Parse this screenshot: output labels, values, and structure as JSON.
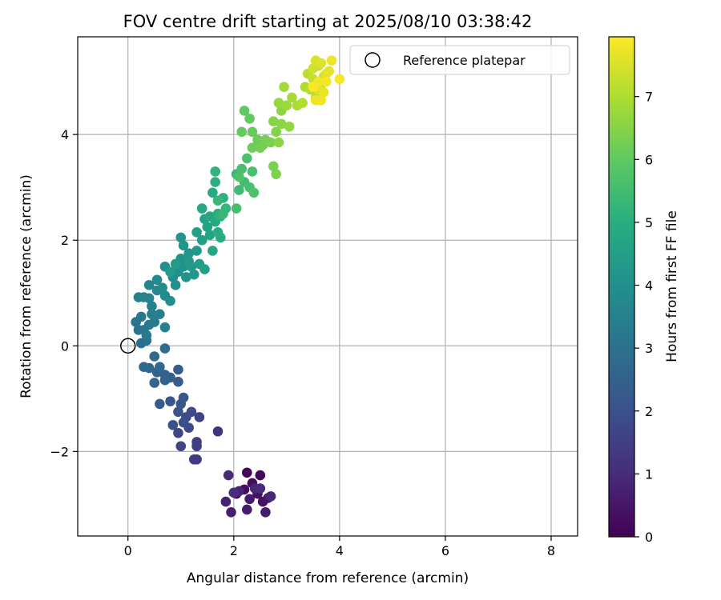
{
  "chart_data": {
    "type": "scatter",
    "title": "FOV centre drift starting at 2025/08/10 03:38:42",
    "xlabel": "Angular distance from reference (arcmin)",
    "ylabel": "Rotation from reference (arcmin)",
    "xlim": [
      -0.95,
      8.5
    ],
    "ylim": [
      -3.6,
      5.85
    ],
    "xticks": [
      {
        "value": 0,
        "label": "0"
      },
      {
        "value": 2,
        "label": "2"
      },
      {
        "value": 4,
        "label": "4"
      },
      {
        "value": 6,
        "label": "6"
      },
      {
        "value": 8,
        "label": "8"
      }
    ],
    "yticks": [
      {
        "value": -2,
        "label": "−2"
      },
      {
        "value": 0,
        "label": "0"
      },
      {
        "value": 2,
        "label": "2"
      },
      {
        "value": 4,
        "label": "4"
      }
    ],
    "grid": true,
    "colorbar": {
      "label": "Hours from first FF file",
      "range": [
        0,
        7.95
      ],
      "ticks": [
        "0",
        "1",
        "2",
        "3",
        "4",
        "5",
        "6",
        "7"
      ],
      "colormap": "viridis"
    },
    "legend": {
      "position": "top-right",
      "entries": [
        {
          "label": "Reference platepar",
          "marker": "open-circle"
        }
      ]
    },
    "reference_point": {
      "x": 0,
      "y": 0
    },
    "points": [
      {
        "x": 2.05,
        "y": -2.8,
        "c": 0.05
      },
      {
        "x": 2.25,
        "y": -2.4,
        "c": 0.12
      },
      {
        "x": 2.5,
        "y": -2.45,
        "c": 0.18
      },
      {
        "x": 2.2,
        "y": -2.72,
        "c": 0.25
      },
      {
        "x": 2.35,
        "y": -2.6,
        "c": 0.3
      },
      {
        "x": 2.45,
        "y": -2.8,
        "c": 0.38
      },
      {
        "x": 2.55,
        "y": -2.95,
        "c": 0.42
      },
      {
        "x": 2.65,
        "y": -2.88,
        "c": 0.5
      },
      {
        "x": 2.3,
        "y": -2.9,
        "c": 0.55
      },
      {
        "x": 2.6,
        "y": -3.15,
        "c": 0.6
      },
      {
        "x": 2.25,
        "y": -3.1,
        "c": 0.65
      },
      {
        "x": 1.95,
        "y": -3.15,
        "c": 0.7
      },
      {
        "x": 1.85,
        "y": -2.95,
        "c": 0.75
      },
      {
        "x": 2.1,
        "y": -2.75,
        "c": 0.8
      },
      {
        "x": 2.4,
        "y": -2.7,
        "c": 0.85
      },
      {
        "x": 2.7,
        "y": -2.85,
        "c": 0.9
      },
      {
        "x": 1.9,
        "y": -2.45,
        "c": 0.95
      },
      {
        "x": 2.5,
        "y": -2.7,
        "c": 1.0
      },
      {
        "x": 2.0,
        "y": -2.78,
        "c": 1.05
      },
      {
        "x": 1.7,
        "y": -1.62,
        "c": 1.15
      },
      {
        "x": 1.3,
        "y": -2.15,
        "c": 1.3
      },
      {
        "x": 1.25,
        "y": -2.15,
        "c": 1.4
      },
      {
        "x": 1.3,
        "y": -1.9,
        "c": 1.45
      },
      {
        "x": 1.3,
        "y": -1.82,
        "c": 1.5
      },
      {
        "x": 1.35,
        "y": -1.35,
        "c": 1.6
      },
      {
        "x": 1.0,
        "y": -1.9,
        "c": 1.65
      },
      {
        "x": 0.95,
        "y": -1.65,
        "c": 1.72
      },
      {
        "x": 1.15,
        "y": -1.55,
        "c": 1.78
      },
      {
        "x": 1.1,
        "y": -1.35,
        "c": 1.85
      },
      {
        "x": 1.2,
        "y": -1.25,
        "c": 1.9
      },
      {
        "x": 1.05,
        "y": -1.45,
        "c": 1.95
      },
      {
        "x": 0.85,
        "y": -1.5,
        "c": 2.0
      },
      {
        "x": 0.95,
        "y": -1.25,
        "c": 2.05
      },
      {
        "x": 1.0,
        "y": -1.1,
        "c": 2.1
      },
      {
        "x": 0.8,
        "y": -1.05,
        "c": 2.15
      },
      {
        "x": 1.05,
        "y": -0.98,
        "c": 2.2
      },
      {
        "x": 0.6,
        "y": -1.1,
        "c": 2.25
      },
      {
        "x": 0.95,
        "y": -0.68,
        "c": 2.3
      },
      {
        "x": 0.95,
        "y": -0.45,
        "c": 2.35
      },
      {
        "x": 0.8,
        "y": -0.6,
        "c": 2.4
      },
      {
        "x": 0.7,
        "y": -0.65,
        "c": 2.45
      },
      {
        "x": 0.7,
        "y": -0.55,
        "c": 2.5
      },
      {
        "x": 0.55,
        "y": -0.5,
        "c": 2.55
      },
      {
        "x": 0.5,
        "y": -0.7,
        "c": 2.6
      },
      {
        "x": 0.6,
        "y": -0.4,
        "c": 2.65
      },
      {
        "x": 0.4,
        "y": -0.42,
        "c": 2.7
      },
      {
        "x": 0.3,
        "y": -0.4,
        "c": 2.75
      },
      {
        "x": 0.5,
        "y": -0.2,
        "c": 2.8
      },
      {
        "x": 0.7,
        "y": -0.05,
        "c": 2.85
      },
      {
        "x": 0.25,
        "y": 0.05,
        "c": 2.9
      },
      {
        "x": 0.35,
        "y": 0.1,
        "c": 2.95
      },
      {
        "x": 0.2,
        "y": 0.3,
        "c": 3.0
      },
      {
        "x": 0.15,
        "y": 0.45,
        "c": 3.05
      },
      {
        "x": 0.3,
        "y": 0.3,
        "c": 3.1
      },
      {
        "x": 0.25,
        "y": 0.55,
        "c": 3.15
      },
      {
        "x": 0.4,
        "y": 0.4,
        "c": 3.2
      },
      {
        "x": 0.35,
        "y": 0.2,
        "c": 3.25
      },
      {
        "x": 0.5,
        "y": 0.45,
        "c": 3.3
      },
      {
        "x": 0.45,
        "y": 0.6,
        "c": 3.35
      },
      {
        "x": 0.6,
        "y": 0.6,
        "c": 3.4
      },
      {
        "x": 0.7,
        "y": 0.35,
        "c": 3.45
      },
      {
        "x": 0.45,
        "y": 0.75,
        "c": 3.5
      },
      {
        "x": 0.2,
        "y": 0.92,
        "c": 3.5
      },
      {
        "x": 0.3,
        "y": 0.92,
        "c": 3.55
      },
      {
        "x": 0.4,
        "y": 0.9,
        "c": 3.6
      },
      {
        "x": 0.4,
        "y": 1.15,
        "c": 3.65
      },
      {
        "x": 0.55,
        "y": 1.05,
        "c": 3.7
      },
      {
        "x": 0.55,
        "y": 1.25,
        "c": 3.75
      },
      {
        "x": 0.65,
        "y": 1.1,
        "c": 3.8
      },
      {
        "x": 0.7,
        "y": 0.95,
        "c": 3.85
      },
      {
        "x": 0.8,
        "y": 0.85,
        "c": 3.9
      },
      {
        "x": 0.7,
        "y": 1.5,
        "c": 3.92
      },
      {
        "x": 0.85,
        "y": 1.3,
        "c": 3.95
      },
      {
        "x": 0.9,
        "y": 1.15,
        "c": 4.0
      },
      {
        "x": 0.95,
        "y": 1.4,
        "c": 4.0
      },
      {
        "x": 1.0,
        "y": 1.65,
        "c": 4.05
      },
      {
        "x": 1.05,
        "y": 1.5,
        "c": 4.08
      },
      {
        "x": 1.1,
        "y": 1.3,
        "c": 4.1
      },
      {
        "x": 1.0,
        "y": 2.05,
        "c": 4.1
      },
      {
        "x": 1.05,
        "y": 1.9,
        "c": 4.15
      },
      {
        "x": 1.15,
        "y": 1.75,
        "c": 4.18
      },
      {
        "x": 1.2,
        "y": 1.5,
        "c": 4.2
      },
      {
        "x": 1.25,
        "y": 1.35,
        "c": 4.25
      },
      {
        "x": 1.3,
        "y": 1.8,
        "c": 4.3
      },
      {
        "x": 1.15,
        "y": 1.6,
        "c": 4.32
      },
      {
        "x": 0.9,
        "y": 1.55,
        "c": 4.35
      },
      {
        "x": 0.8,
        "y": 1.4,
        "c": 4.38
      },
      {
        "x": 1.35,
        "y": 1.55,
        "c": 4.4
      },
      {
        "x": 1.4,
        "y": 2.0,
        "c": 4.45
      },
      {
        "x": 1.3,
        "y": 2.15,
        "c": 4.5
      },
      {
        "x": 1.45,
        "y": 1.45,
        "c": 4.5
      },
      {
        "x": 1.5,
        "y": 2.25,
        "c": 4.55
      },
      {
        "x": 1.45,
        "y": 2.4,
        "c": 4.6
      },
      {
        "x": 1.55,
        "y": 2.1,
        "c": 4.65
      },
      {
        "x": 1.6,
        "y": 1.8,
        "c": 4.7
      },
      {
        "x": 1.55,
        "y": 2.45,
        "c": 4.75
      },
      {
        "x": 1.4,
        "y": 2.6,
        "c": 4.8
      },
      {
        "x": 1.65,
        "y": 2.35,
        "c": 4.8
      },
      {
        "x": 1.6,
        "y": 2.9,
        "c": 4.85
      },
      {
        "x": 1.7,
        "y": 2.15,
        "c": 4.9
      },
      {
        "x": 1.75,
        "y": 2.05,
        "c": 4.95
      },
      {
        "x": 1.7,
        "y": 2.5,
        "c": 5.0
      },
      {
        "x": 1.65,
        "y": 3.1,
        "c": 5.05
      },
      {
        "x": 1.8,
        "y": 2.8,
        "c": 5.1
      },
      {
        "x": 1.75,
        "y": 2.45,
        "c": 5.15
      },
      {
        "x": 1.65,
        "y": 3.3,
        "c": 5.2
      },
      {
        "x": 1.85,
        "y": 2.6,
        "c": 5.25
      },
      {
        "x": 1.7,
        "y": 2.75,
        "c": 5.3
      },
      {
        "x": 1.8,
        "y": 2.5,
        "c": 5.35
      },
      {
        "x": 2.05,
        "y": 3.25,
        "c": 5.4
      },
      {
        "x": 2.1,
        "y": 2.95,
        "c": 5.45
      },
      {
        "x": 2.2,
        "y": 3.1,
        "c": 5.5
      },
      {
        "x": 2.05,
        "y": 2.6,
        "c": 5.55
      },
      {
        "x": 2.15,
        "y": 3.35,
        "c": 5.55
      },
      {
        "x": 2.3,
        "y": 3.0,
        "c": 5.6
      },
      {
        "x": 2.35,
        "y": 3.3,
        "c": 5.6
      },
      {
        "x": 2.25,
        "y": 3.55,
        "c": 5.65
      },
      {
        "x": 2.38,
        "y": 2.9,
        "c": 5.7
      },
      {
        "x": 2.1,
        "y": 3.2,
        "c": 5.7
      },
      {
        "x": 2.2,
        "y": 4.45,
        "c": 6.0
      },
      {
        "x": 2.3,
        "y": 4.3,
        "c": 6.05
      },
      {
        "x": 2.15,
        "y": 4.05,
        "c": 6.08
      },
      {
        "x": 2.35,
        "y": 4.05,
        "c": 6.1
      },
      {
        "x": 2.45,
        "y": 3.9,
        "c": 6.15
      },
      {
        "x": 2.35,
        "y": 3.75,
        "c": 6.2
      },
      {
        "x": 2.55,
        "y": 3.8,
        "c": 6.2
      },
      {
        "x": 2.5,
        "y": 3.75,
        "c": 6.25
      },
      {
        "x": 2.6,
        "y": 3.9,
        "c": 6.3
      },
      {
        "x": 2.7,
        "y": 3.85,
        "c": 6.35
      },
      {
        "x": 2.75,
        "y": 3.4,
        "c": 6.35
      },
      {
        "x": 2.8,
        "y": 3.25,
        "c": 6.4
      },
      {
        "x": 2.8,
        "y": 4.05,
        "c": 6.45
      },
      {
        "x": 2.75,
        "y": 4.25,
        "c": 6.5
      },
      {
        "x": 2.9,
        "y": 4.2,
        "c": 6.55
      },
      {
        "x": 2.9,
        "y": 4.45,
        "c": 6.6
      },
      {
        "x": 2.85,
        "y": 3.85,
        "c": 6.6
      },
      {
        "x": 3.05,
        "y": 4.15,
        "c": 6.65
      },
      {
        "x": 2.85,
        "y": 4.6,
        "c": 6.7
      },
      {
        "x": 3.0,
        "y": 4.55,
        "c": 6.75
      },
      {
        "x": 2.95,
        "y": 4.9,
        "c": 6.85
      },
      {
        "x": 3.1,
        "y": 4.7,
        "c": 6.9
      },
      {
        "x": 3.2,
        "y": 4.55,
        "c": 6.95
      },
      {
        "x": 3.35,
        "y": 4.9,
        "c": 7.0
      },
      {
        "x": 3.3,
        "y": 4.6,
        "c": 7.05
      },
      {
        "x": 3.45,
        "y": 4.85,
        "c": 7.1
      },
      {
        "x": 3.4,
        "y": 5.15,
        "c": 7.15
      },
      {
        "x": 3.55,
        "y": 4.7,
        "c": 7.2
      },
      {
        "x": 3.5,
        "y": 5.05,
        "c": 7.25
      },
      {
        "x": 3.6,
        "y": 5.3,
        "c": 7.3
      },
      {
        "x": 3.65,
        "y": 4.95,
        "c": 7.35
      },
      {
        "x": 3.5,
        "y": 5.25,
        "c": 7.4
      },
      {
        "x": 3.7,
        "y": 5.1,
        "c": 7.45
      },
      {
        "x": 3.55,
        "y": 5.4,
        "c": 7.5
      },
      {
        "x": 3.65,
        "y": 5.35,
        "c": 7.55
      },
      {
        "x": 3.75,
        "y": 5.15,
        "c": 7.6
      },
      {
        "x": 3.6,
        "y": 4.85,
        "c": 7.62
      },
      {
        "x": 3.8,
        "y": 5.2,
        "c": 7.65
      },
      {
        "x": 3.7,
        "y": 4.8,
        "c": 7.7
      },
      {
        "x": 3.85,
        "y": 5.4,
        "c": 7.75
      },
      {
        "x": 3.55,
        "y": 4.65,
        "c": 7.78
      },
      {
        "x": 3.65,
        "y": 4.65,
        "c": 7.8
      },
      {
        "x": 3.6,
        "y": 5.0,
        "c": 7.82
      },
      {
        "x": 3.75,
        "y": 5.0,
        "c": 7.85
      },
      {
        "x": 4.0,
        "y": 5.05,
        "c": 7.9
      },
      {
        "x": 3.5,
        "y": 4.9,
        "c": 7.92
      }
    ]
  }
}
